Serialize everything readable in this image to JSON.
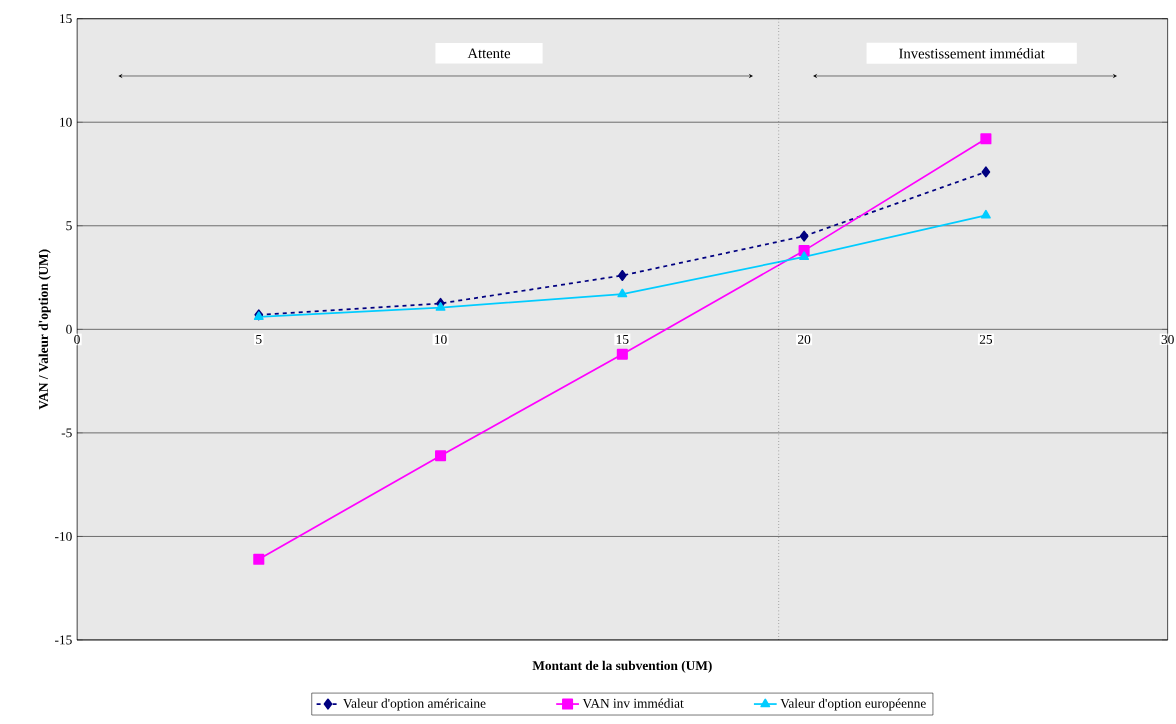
{
  "chart_data": {
    "type": "line",
    "xlabel": "Montant de la subvention (UM)",
    "ylabel": "VAN / Valeur d'option (UM)",
    "x": [
      5,
      10,
      15,
      20,
      25
    ],
    "series": [
      {
        "name": "Valeur d'option américaine",
        "color": "#000080",
        "marker": "diamond",
        "line_style": "dashed",
        "values": [
          0.7,
          1.25,
          2.6,
          4.5,
          7.6
        ]
      },
      {
        "name": "VAN inv immédiat",
        "color": "#ff00ff",
        "marker": "square",
        "line_style": "solid",
        "values": [
          -11.1,
          -6.1,
          -1.2,
          3.8,
          9.2
        ]
      },
      {
        "name": "Valeur d'option européenne",
        "color": "#00ccff",
        "marker": "triangle",
        "line_style": "solid",
        "values": [
          0.6,
          1.05,
          1.7,
          3.5,
          5.5
        ]
      }
    ],
    "xlim": [
      0,
      30
    ],
    "xticks": [
      0,
      5,
      10,
      15,
      20,
      25,
      30
    ],
    "ylim": [
      -15,
      15
    ],
    "yticks": [
      -15,
      -10,
      -5,
      0,
      5,
      10,
      15
    ],
    "ref_lines": [
      {
        "axis": "x",
        "value": 19.3,
        "line_style": "dotted"
      }
    ],
    "annotations": [
      "Attente",
      "Investissement immédiat"
    ],
    "grid": "y",
    "legend": "bottom"
  }
}
